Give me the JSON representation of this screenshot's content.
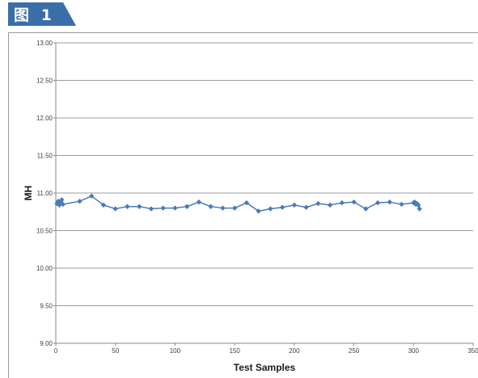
{
  "figure": {
    "label": "图 1",
    "accent_color": "#3a6ea8"
  },
  "chart_data": {
    "type": "line",
    "title": "",
    "xlabel": "Test Samples",
    "ylabel": "MH",
    "xlim": [
      0,
      350
    ],
    "ylim": [
      9.0,
      13.0
    ],
    "x_ticks": [
      0,
      50,
      100,
      150,
      200,
      250,
      300,
      350
    ],
    "y_ticks": [
      9.0,
      9.5,
      10.0,
      10.5,
      11.0,
      11.5,
      12.0,
      12.5,
      13.0
    ],
    "x_tick_labels": [
      "0",
      "50",
      "100",
      "150",
      "200",
      "250",
      "300",
      "350"
    ],
    "y_tick_labels": [
      "9.00",
      "9.50",
      "10.00",
      "10.50",
      "11.00",
      "11.50",
      "12.00",
      "12.50",
      "13.00"
    ],
    "grid": "horizontal",
    "series": [
      {
        "color": "#4a7ab8",
        "marker": "diamond",
        "x": [
          1,
          2,
          3,
          4,
          5,
          6,
          20,
          30,
          40,
          50,
          60,
          70,
          80,
          90,
          100,
          110,
          120,
          130,
          140,
          150,
          160,
          170,
          180,
          190,
          200,
          210,
          220,
          230,
          240,
          250,
          260,
          270,
          280,
          290,
          300,
          301,
          302,
          303,
          304,
          305
        ],
        "y": [
          10.86,
          10.89,
          10.84,
          10.87,
          10.91,
          10.85,
          10.89,
          10.96,
          10.84,
          10.79,
          10.82,
          10.82,
          10.79,
          10.8,
          10.8,
          10.82,
          10.88,
          10.82,
          10.8,
          10.8,
          10.87,
          10.76,
          10.79,
          10.81,
          10.84,
          10.81,
          10.86,
          10.84,
          10.87,
          10.88,
          10.79,
          10.87,
          10.88,
          10.85,
          10.87,
          10.88,
          10.85,
          10.86,
          10.84,
          10.79
        ]
      }
    ]
  }
}
